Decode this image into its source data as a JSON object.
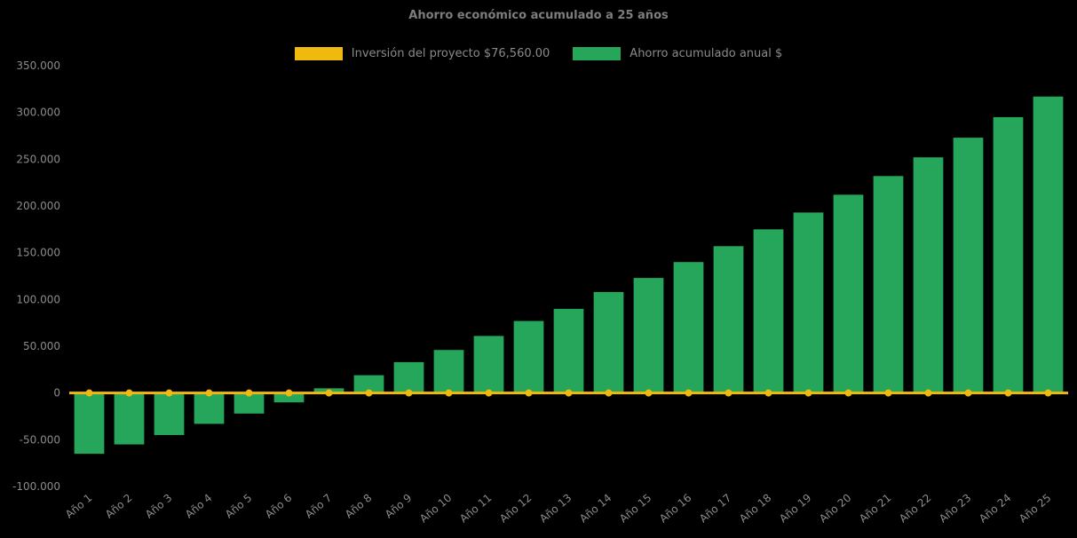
{
  "chart": {
    "title": "Ahorro económico acumulado a 25 años"
  },
  "legend": {
    "items": [
      {
        "label": "Inversión del proyecto $76,560.00",
        "color": "#f0b90f"
      },
      {
        "label": "Ahorro acumulado anual $",
        "color": "#26a65b"
      }
    ]
  },
  "chart_data": {
    "type": "bar",
    "title": "Ahorro económico acumulado a 25 años",
    "background": "#000000",
    "text_color": "#8b8b8b",
    "grid": false,
    "legend_position": "top",
    "xlabel": "",
    "ylabel": "",
    "ylim": [
      -100000,
      350000
    ],
    "ytick_step": 50000,
    "categories": [
      "Año 1",
      "Año 2",
      "Año 3",
      "Año 4",
      "Año 5",
      "Año 6",
      "Año 7",
      "Año 8",
      "Año 9",
      "Año 10",
      "Año 11",
      "Año 12",
      "Año 13",
      "Año 14",
      "Año 15",
      "Año 16",
      "Año 17",
      "Año 18",
      "Año 19",
      "Año 20",
      "Año 21",
      "Año 22",
      "Año 23",
      "Año 24",
      "Año 25"
    ],
    "series": [
      {
        "name": "Inversión del proyecto $76,560.00",
        "type": "line",
        "color": "#f0b90f",
        "constant_value": 0,
        "marker": "circle"
      },
      {
        "name": "Ahorro acumulado anual $",
        "type": "bar",
        "color": "#26a65b",
        "values": [
          -65000,
          -55000,
          -45000,
          -33000,
          -22000,
          -10000,
          5000,
          19000,
          33000,
          46000,
          61000,
          77000,
          90000,
          108000,
          123000,
          140000,
          157000,
          175000,
          193000,
          212000,
          232000,
          252000,
          273000,
          295000,
          317000
        ]
      }
    ]
  }
}
